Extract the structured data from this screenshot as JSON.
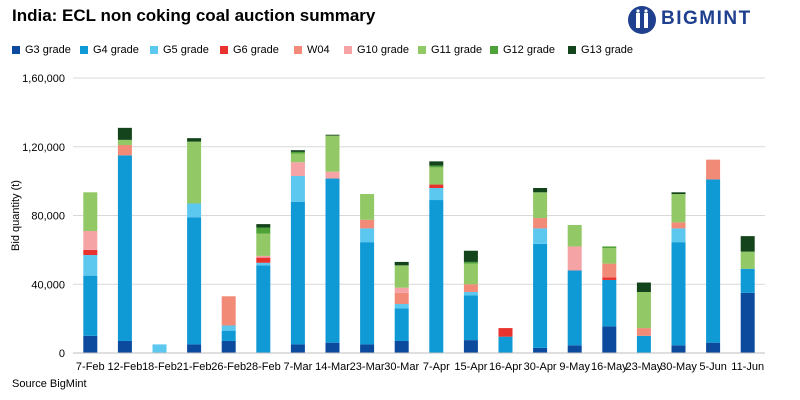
{
  "header": {
    "title": "India: ECL non coking coal auction summary",
    "logo_text": "BIGMINT"
  },
  "source": "Source BigMint",
  "chart_data": {
    "type": "bar",
    "stacked": true,
    "ylabel": "Bid quantity (t)",
    "ylim": [
      0,
      160000
    ],
    "yticks": [
      0,
      40000,
      80000,
      120000,
      160000
    ],
    "ytick_labels": [
      "0",
      "40,000",
      "80,000",
      "1,20,000",
      "1,60,000"
    ],
    "grid": true,
    "legend_position": "top",
    "categories": [
      "7-Feb",
      "12-Feb",
      "18-Feb",
      "21-Feb",
      "26-Feb",
      "28-Feb",
      "7-Mar",
      "14-Mar",
      "23-Mar",
      "30-Mar",
      "7-Apr",
      "15-Apr",
      "16-Apr",
      "30-Apr",
      "9-May",
      "16-May",
      "23-May",
      "30-May",
      "5-Jun",
      "11-Jun"
    ],
    "series": [
      {
        "name": "G3 grade",
        "color": "#0b4a9c",
        "values": [
          10000,
          7000,
          0,
          5000,
          7000,
          0,
          5000,
          6000,
          5000,
          7000,
          0,
          7500,
          0,
          3000,
          4500,
          15500,
          0,
          4500,
          6000,
          35000
        ]
      },
      {
        "name": "G4 grade",
        "color": "#0f9ad6",
        "values": [
          35000,
          108000,
          0,
          74000,
          6000,
          51000,
          83000,
          95500,
          59500,
          19000,
          89000,
          26000,
          9500,
          60500,
          43500,
          27000,
          10000,
          60000,
          95000,
          14000
        ]
      },
      {
        "name": "G5 grade",
        "color": "#5cc8ef",
        "values": [
          12000,
          0,
          5000,
          8000,
          3000,
          1500,
          15000,
          0,
          8000,
          2500,
          7000,
          2000,
          0,
          9000,
          0,
          0,
          0,
          8000,
          0,
          0
        ]
      },
      {
        "name": "G6 grade",
        "color": "#e8322e",
        "values": [
          3000,
          0,
          0,
          0,
          0,
          3000,
          0,
          0,
          0,
          0,
          2000,
          0,
          5000,
          0,
          0,
          1500,
          0,
          0,
          0,
          0
        ]
      },
      {
        "name": "W04",
        "color": "#f28a78",
        "values": [
          0,
          6000,
          0,
          0,
          17000,
          0,
          0,
          0,
          5000,
          6500,
          0,
          4500,
          0,
          6000,
          0,
          8000,
          4500,
          3500,
          11500,
          0
        ]
      },
      {
        "name": "G10 grade",
        "color": "#f5a3a5",
        "values": [
          11000,
          0,
          0,
          0,
          0,
          1000,
          8000,
          4000,
          0,
          3000,
          0,
          0,
          0,
          0,
          14000,
          0,
          0,
          0,
          0,
          0
        ]
      },
      {
        "name": "G11 grade",
        "color": "#92c865",
        "values": [
          22500,
          3000,
          0,
          36000,
          0,
          13000,
          5000,
          21000,
          15000,
          13000,
          10000,
          12000,
          0,
          15000,
          12500,
          9000,
          21000,
          16500,
          0,
          10000
        ]
      },
      {
        "name": "G12 grade",
        "color": "#4fa238",
        "values": [
          0,
          0,
          0,
          0,
          0,
          3500,
          1000,
          0,
          0,
          0,
          1000,
          1000,
          0,
          0,
          0,
          1000,
          0,
          0,
          0,
          0
        ]
      },
      {
        "name": "G13 grade",
        "color": "#14441b",
        "values": [
          0,
          7000,
          0,
          2000,
          0,
          2000,
          1000,
          500,
          0,
          2000,
          2500,
          6500,
          0,
          2500,
          0,
          0,
          5500,
          1000,
          0,
          9000
        ]
      }
    ]
  }
}
